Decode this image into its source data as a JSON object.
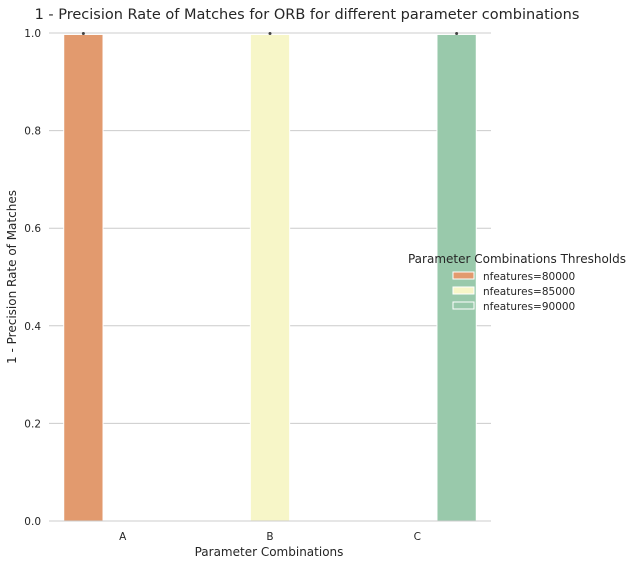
{
  "chart_data": {
    "type": "bar",
    "title": "1 - Precision Rate of Matches for ORB for different parameter combinations",
    "xlabel": "Parameter Combinations",
    "ylabel": "1 - Precision Rate of Matches",
    "categories": [
      "A",
      "B",
      "C"
    ],
    "ylim": [
      0,
      1.0
    ],
    "yticks": [
      "0.0",
      "0.2",
      "0.4",
      "0.6",
      "0.8",
      "1.0"
    ],
    "grid": "horizontal",
    "legend_title": "Parameter Combinations Thresholds",
    "legend_position": "center-right",
    "series": [
      {
        "name": "nfeatures=80000",
        "color": "#e29a6e",
        "values": [
          0.997,
          null,
          null
        ]
      },
      {
        "name": "nfeatures=85000",
        "color": "#f7f6c8",
        "values": [
          null,
          0.997,
          null
        ]
      },
      {
        "name": "nfeatures=90000",
        "color": "#99c9ab",
        "values": [
          null,
          null,
          0.997
        ]
      }
    ]
  }
}
